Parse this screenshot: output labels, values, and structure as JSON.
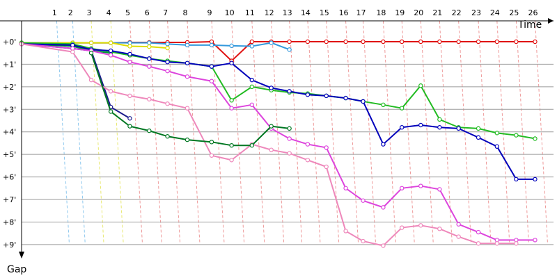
{
  "chart_data": {
    "type": "line",
    "title": "",
    "xlabel": "Time",
    "ylabel": "Gap",
    "x_ticks": [
      "1",
      "2",
      "3",
      "4",
      "5",
      "6",
      "7",
      "8",
      "9",
      "10",
      "11",
      "12",
      "13",
      "14",
      "15",
      "16",
      "17",
      "18",
      "19",
      "20",
      "21",
      "22",
      "23",
      "24",
      "25",
      "26"
    ],
    "y_ticks": [
      "+0'",
      "+1'",
      "+2'",
      "+3'",
      "+4'",
      "+5'",
      "+6'",
      "+7'",
      "+8'",
      "+9'"
    ],
    "xlim": [
      0,
      28.8
    ],
    "ylim": [
      0,
      9.25
    ],
    "grid": true,
    "series": [
      {
        "color": "#e01010",
        "x": [
          0,
          2.76,
          3.77,
          4.83,
          5.86,
          6.91,
          7.9,
          8.97,
          10.29,
          11.37,
          12.47,
          13.52,
          14.5,
          15.49,
          16.5,
          17.55,
          18.49,
          19.58,
          20.59,
          21.61,
          22.63,
          23.66,
          24.73,
          25.74,
          26.78,
          27.8
        ],
        "y": [
          0.05,
          0.05,
          0.05,
          0.05,
          0.03,
          0.03,
          0.03,
          0.03,
          0.0,
          0.85,
          0.0,
          0.0,
          0.0,
          0.0,
          0.0,
          0.0,
          0.0,
          0.0,
          0.0,
          0.0,
          0.0,
          0.0,
          0.0,
          0.0,
          0.0,
          0.0
        ]
      },
      {
        "color": "#3399dd",
        "x": [
          0,
          2.76,
          3.77,
          4.83,
          5.86,
          6.91,
          7.9,
          8.97,
          10.29,
          11.37,
          12.47,
          13.52,
          14.5
        ],
        "y": [
          0.05,
          0.05,
          0.05,
          0.05,
          0.05,
          0.05,
          0.1,
          0.15,
          0.15,
          0.18,
          0.2,
          0.05,
          0.35
        ]
      },
      {
        "color": "#dddd00",
        "x": [
          0,
          2.76,
          3.77,
          4.83,
          5.86,
          6.91,
          7.9
        ],
        "y": [
          0.05,
          0.05,
          0.05,
          0.05,
          0.2,
          0.22,
          0.28
        ]
      },
      {
        "color": "#009933",
        "x": [
          0,
          2.76,
          3.77,
          4.83
        ],
        "y": [
          0.1,
          0.2,
          0.4,
          0.5
        ]
      },
      {
        "color": "#1a1a8c",
        "x": [
          0,
          2.76,
          3.77,
          4.83,
          5.86
        ],
        "y": [
          0.1,
          0.3,
          0.4,
          2.9,
          3.4
        ]
      },
      {
        "color": "#22bb22",
        "x": [
          0,
          2.76,
          3.77,
          4.83,
          5.86,
          6.91,
          7.9,
          8.97,
          10.29,
          11.37,
          12.47,
          13.52,
          14.5,
          15.49,
          16.5,
          17.55,
          18.49,
          19.58,
          20.59,
          21.61,
          22.63,
          23.66,
          24.73,
          25.74,
          26.78,
          27.8
        ],
        "y": [
          0.05,
          0.1,
          0.3,
          0.45,
          0.6,
          0.75,
          0.85,
          0.95,
          1.1,
          2.6,
          2.0,
          2.15,
          2.25,
          2.3,
          2.4,
          2.5,
          2.65,
          2.8,
          2.95,
          1.95,
          3.45,
          3.8,
          3.85,
          4.05,
          4.15,
          4.3
        ]
      },
      {
        "color": "#0000bb",
        "x": [
          0,
          2.76,
          3.77,
          4.83,
          5.86,
          6.91,
          7.9,
          8.97,
          10.29,
          11.37,
          12.47,
          13.52,
          14.5,
          15.49,
          16.5,
          17.55,
          18.49,
          19.58,
          20.59,
          21.61,
          22.63,
          23.66,
          24.73,
          25.74,
          26.78,
          27.8
        ],
        "y": [
          0.1,
          0.15,
          0.35,
          0.4,
          0.55,
          0.75,
          0.9,
          0.95,
          1.1,
          0.95,
          1.7,
          2.05,
          2.2,
          2.35,
          2.4,
          2.5,
          2.65,
          4.55,
          3.8,
          3.7,
          3.8,
          3.85,
          4.25,
          4.65,
          6.1,
          6.1
        ]
      },
      {
        "color": "#dd44dd",
        "x": [
          0,
          2.76,
          3.77,
          4.83,
          5.86,
          6.91,
          7.9,
          8.97,
          10.29,
          11.37,
          12.47,
          13.52,
          14.5,
          15.49,
          16.5,
          17.55,
          18.49,
          19.58,
          20.59,
          21.61,
          22.63,
          23.66,
          24.73,
          25.74,
          26.78,
          27.8
        ],
        "y": [
          0.1,
          0.3,
          0.4,
          0.6,
          0.9,
          1.1,
          1.3,
          1.55,
          1.75,
          2.95,
          2.8,
          3.85,
          4.3,
          4.55,
          4.7,
          6.5,
          7.05,
          7.35,
          6.5,
          6.4,
          6.55,
          8.1,
          8.45,
          8.8,
          8.8,
          8.8
        ]
      },
      {
        "color": "#ee88bb",
        "x": [
          0,
          2.76,
          3.77,
          4.83,
          5.86,
          6.91,
          7.9,
          8.97,
          10.29,
          11.37,
          12.47,
          13.52,
          14.5,
          15.49,
          16.5,
          17.55,
          18.49,
          19.58,
          20.59,
          21.61,
          22.63,
          23.66,
          24.73,
          25.74,
          26.78
        ],
        "y": [
          0.1,
          0.45,
          1.7,
          2.2,
          2.4,
          2.55,
          2.75,
          2.95,
          5.05,
          5.25,
          4.55,
          4.8,
          4.95,
          5.25,
          5.55,
          8.4,
          8.85,
          9.05,
          8.25,
          8.15,
          8.3,
          8.65,
          8.95,
          8.95,
          8.95
        ]
      },
      {
        "color": "#007722",
        "x": [
          3.77,
          4.83,
          5.86,
          6.91,
          7.9,
          8.97,
          10.29,
          11.37,
          12.47,
          13.52,
          14.5
        ],
        "y": [
          0.5,
          3.1,
          3.75,
          3.95,
          4.2,
          4.35,
          4.45,
          4.6,
          4.6,
          3.75,
          3.85
        ]
      }
    ]
  }
}
